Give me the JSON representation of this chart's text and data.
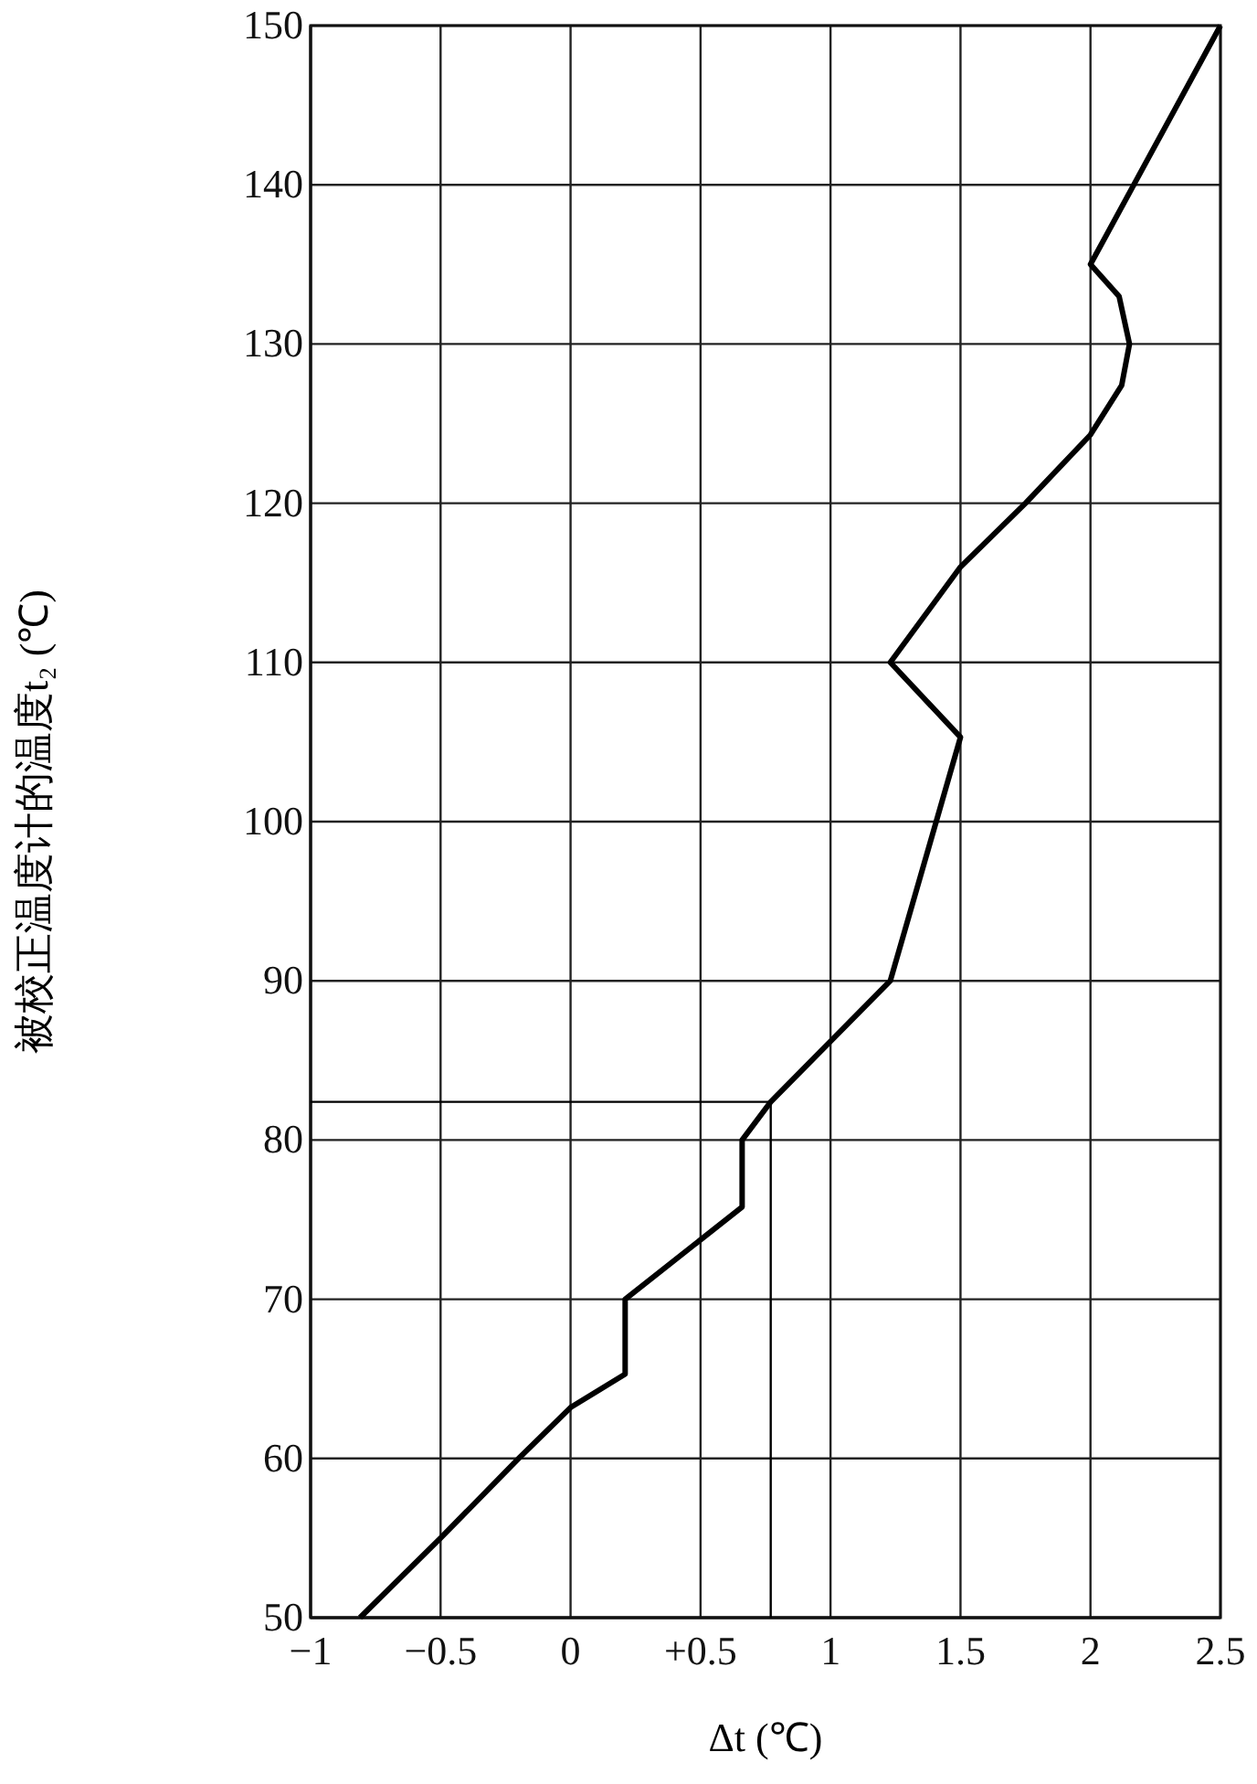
{
  "chart_data": {
    "type": "line",
    "xlabel": "Δt (℃)",
    "ylabel": "被校正温度计的温度t₂ (℃)",
    "xlim": [
      -1,
      2.5
    ],
    "xticks": [
      {
        "value": -1,
        "label": "−1"
      },
      {
        "value": -0.5,
        "label": "−0.5"
      },
      0,
      {
        "value": 0.5,
        "label": "+0.5"
      },
      1,
      1.5,
      2,
      2.5
    ],
    "ylim": [
      50,
      150
    ],
    "yticks": [
      50,
      60,
      70,
      80,
      90,
      100,
      110,
      120,
      130,
      140,
      150
    ],
    "grid": true,
    "marker": "none",
    "line_style": "solid",
    "series": [
      {
        "color": "#000000",
        "x": [
          -0.81,
          -0.5,
          -0.2,
          0,
          0.21,
          0.21,
          0.66,
          0.66,
          0.77,
          1.23,
          1.5,
          1.23,
          1.5,
          1.75,
          2.0,
          2.12,
          2.15,
          2.11,
          2.0,
          2.5
        ],
        "values": [
          50,
          55,
          60,
          63.2,
          65.3,
          70,
          75.8,
          80,
          82.4,
          90,
          105.3,
          110,
          116,
          120,
          124.3,
          127.4,
          130,
          133,
          135,
          150
        ]
      }
    ],
    "ref_lines": [
      {
        "axis": "y",
        "value": 82.4,
        "color": "#000000"
      },
      {
        "axis": "x",
        "value": 0.77,
        "color": "#000000"
      }
    ]
  }
}
